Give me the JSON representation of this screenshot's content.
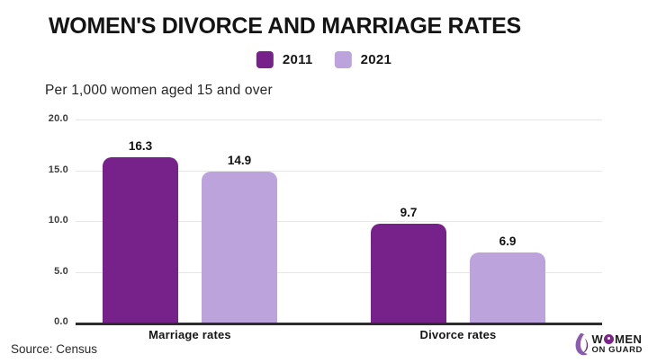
{
  "title": "WOMEN'S DIVORCE AND MARRIAGE RATES",
  "subtitle": "Per 1,000 women aged 15 and over",
  "source": "Source: Census",
  "chart_data": {
    "type": "bar",
    "title": "WOMEN'S DIVORCE AND MARRIAGE RATES",
    "subtitle": "Per 1,000 women aged 15 and over",
    "categories": [
      "Marriage rates",
      "Divorce rates"
    ],
    "series": [
      {
        "name": "2011",
        "color": "#77218A",
        "values": [
          16.3,
          9.7
        ]
      },
      {
        "name": "2021",
        "color": "#BDA3DC",
        "values": [
          14.9,
          6.9
        ]
      }
    ],
    "xlabel": "",
    "ylabel": "",
    "ylim": [
      0,
      20
    ],
    "yticks": [
      20,
      15,
      10,
      5,
      0
    ],
    "ytick_format": "one_decimal",
    "grid": true,
    "value_labels": true,
    "legend_position": "top-center",
    "source": "Source: Census"
  },
  "logo": {
    "line1": "WOMEN",
    "line2": "ON GUARD",
    "accent": "#7B2687"
  },
  "colors": {
    "background": "#ffffff",
    "title_text": "#141414",
    "gridline": "#e6e6e6",
    "axis": "#2d2d2d",
    "bar_2011": "#77218A",
    "bar_2021": "#BDA3DC"
  }
}
